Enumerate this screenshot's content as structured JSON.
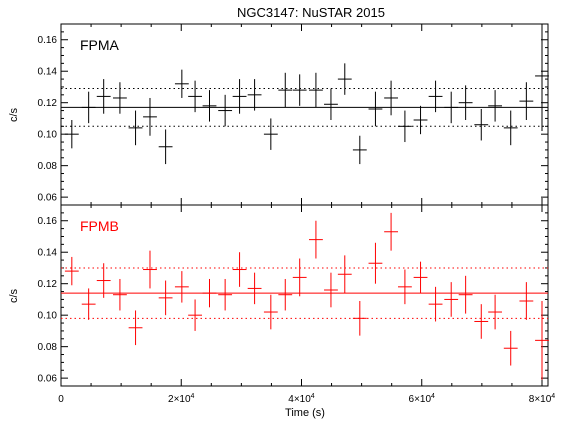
{
  "title": "NGC3147: NuSTAR 2015",
  "xlabel": "Time (s)",
  "x_ticks": [
    "0",
    "2×10^4",
    "4×10^4",
    "6×10^4",
    "8×10^4"
  ],
  "x_tick_values": [
    0,
    20000,
    40000,
    60000,
    80000
  ],
  "colors": {
    "fpma": "#000000",
    "fpmb": "#ff0000"
  },
  "chart_data": [
    {
      "type": "scatter",
      "panel": "FPMA",
      "label": "FPMA",
      "ylabel": "c/s",
      "xlim": [
        0,
        81000
      ],
      "ylim": [
        0.055,
        0.17
      ],
      "y_ticks": [
        "0.06",
        "0.08",
        "0.10",
        "0.12",
        "0.14",
        "0.16"
      ],
      "y_tick_values": [
        0.06,
        0.08,
        0.1,
        0.12,
        0.14,
        0.16
      ],
      "x_halfwidth": 1150,
      "mean": 0.117,
      "mean_band": [
        0.105,
        0.129
      ],
      "x": [
        1800,
        4600,
        7100,
        9800,
        12400,
        14800,
        17400,
        20100,
        22300,
        24700,
        27300,
        29700,
        32200,
        34900,
        37300,
        39700,
        42400,
        44900,
        47200,
        49700,
        52300,
        54900,
        57200,
        59800,
        62300,
        64900,
        67300,
        69900,
        72200,
        74800,
        77400,
        80000
      ],
      "y": [
        0.1,
        0.117,
        0.124,
        0.123,
        0.104,
        0.111,
        0.092,
        0.132,
        0.124,
        0.118,
        0.115,
        0.124,
        0.125,
        0.1,
        0.128,
        0.128,
        0.128,
        0.119,
        0.135,
        0.09,
        0.116,
        0.123,
        0.105,
        0.109,
        0.124,
        0.117,
        0.12,
        0.106,
        0.118,
        0.104,
        0.121,
        0.137
      ],
      "yerr": [
        0.009,
        0.01,
        0.011,
        0.01,
        0.011,
        0.012,
        0.011,
        0.009,
        0.01,
        0.01,
        0.01,
        0.011,
        0.01,
        0.01,
        0.011,
        0.01,
        0.011,
        0.01,
        0.01,
        0.009,
        0.011,
        0.011,
        0.01,
        0.009,
        0.01,
        0.01,
        0.011,
        0.01,
        0.01,
        0.011,
        0.012,
        0.035
      ]
    },
    {
      "type": "scatter",
      "panel": "FPMB",
      "label": "FPMB",
      "ylabel": "c/s",
      "xlim": [
        0,
        81000
      ],
      "ylim": [
        0.055,
        0.17
      ],
      "y_ticks": [
        "0.06",
        "0.08",
        "0.10",
        "0.12",
        "0.14",
        "0.16"
      ],
      "y_tick_values": [
        0.06,
        0.08,
        0.1,
        0.12,
        0.14,
        0.16
      ],
      "x_halfwidth": 1150,
      "mean": 0.114,
      "mean_band": [
        0.098,
        0.13
      ],
      "x": [
        1800,
        4600,
        7100,
        9800,
        12400,
        14800,
        17400,
        20100,
        22300,
        24700,
        27300,
        29700,
        32200,
        34900,
        37300,
        39700,
        42400,
        44900,
        47200,
        49700,
        52300,
        54900,
        57200,
        59800,
        62300,
        64900,
        67300,
        69900,
        72200,
        74800,
        77400,
        80000
      ],
      "y": [
        0.128,
        0.107,
        0.122,
        0.113,
        0.092,
        0.129,
        0.111,
        0.118,
        0.1,
        0.114,
        0.113,
        0.129,
        0.117,
        0.102,
        0.113,
        0.124,
        0.148,
        0.116,
        0.126,
        0.098,
        0.133,
        0.153,
        0.118,
        0.124,
        0.107,
        0.11,
        0.113,
        0.096,
        0.102,
        0.079,
        0.109,
        0.084
      ],
      "yerr": [
        0.009,
        0.01,
        0.011,
        0.01,
        0.011,
        0.012,
        0.011,
        0.01,
        0.01,
        0.009,
        0.01,
        0.011,
        0.01,
        0.011,
        0.01,
        0.012,
        0.012,
        0.011,
        0.012,
        0.011,
        0.013,
        0.012,
        0.011,
        0.01,
        0.011,
        0.011,
        0.012,
        0.011,
        0.011,
        0.011,
        0.012,
        0.025
      ]
    }
  ]
}
